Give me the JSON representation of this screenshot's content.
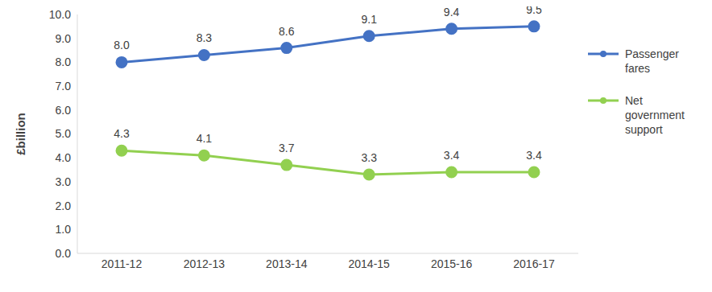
{
  "chart_data": {
    "type": "line",
    "y_label": "£billion",
    "categories": [
      "2011-12",
      "2012-13",
      "2013-14",
      "2014-15",
      "2015-16",
      "2016-17"
    ],
    "series": [
      {
        "name": "Passenger fares",
        "color": "#4472c4",
        "marker": "circle",
        "values": [
          8.0,
          8.3,
          8.6,
          9.1,
          9.4,
          9.5
        ],
        "value_labels": [
          "8.0",
          "8.3",
          "8.6",
          "9.1",
          "9.4",
          "9.5"
        ]
      },
      {
        "name": "Net government support",
        "color": "#92d050",
        "marker": "circle",
        "values": [
          4.3,
          4.1,
          3.7,
          3.3,
          3.4,
          3.4
        ],
        "value_labels": [
          "4.3",
          "4.1",
          "3.7",
          "3.3",
          "3.4",
          "3.4"
        ]
      }
    ],
    "ylim": [
      0,
      10
    ],
    "yticks": [
      {
        "value": 0,
        "label": "0.0"
      },
      {
        "value": 1,
        "label": "1.0"
      },
      {
        "value": 2,
        "label": "2.0"
      },
      {
        "value": 3,
        "label": "3.0"
      },
      {
        "value": 4,
        "label": "4.0"
      },
      {
        "value": 5,
        "label": "5.0"
      },
      {
        "value": 6,
        "label": "6.0"
      },
      {
        "value": 7,
        "label": "7.0"
      },
      {
        "value": 8,
        "label": "8.0"
      },
      {
        "value": 9,
        "label": "9.0"
      },
      {
        "value": 10,
        "label": "10.0"
      }
    ],
    "grid": false,
    "legend": "right",
    "data_labels": true
  }
}
